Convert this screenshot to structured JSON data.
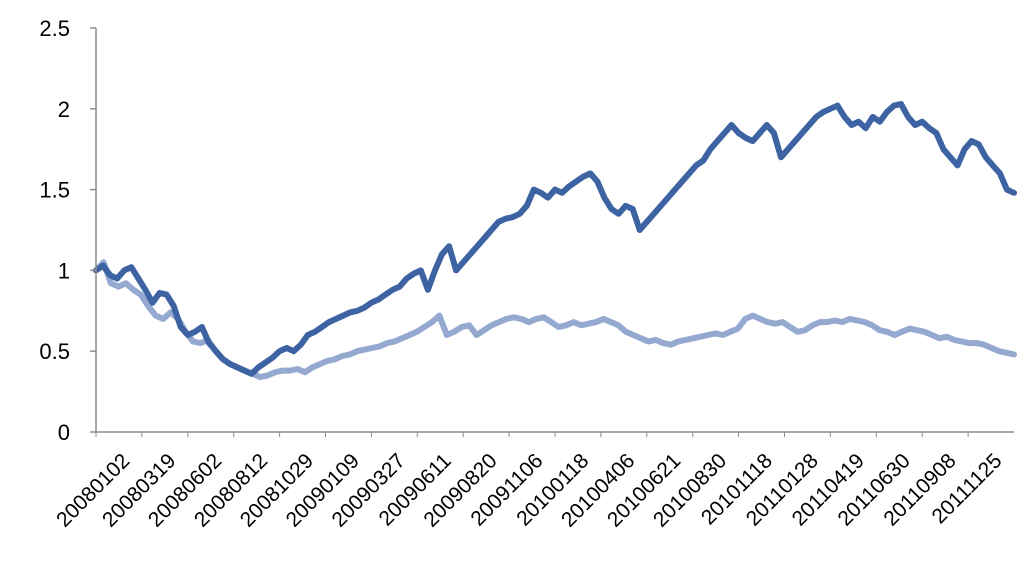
{
  "chart_data": {
    "type": "line",
    "title": "",
    "xlabel": "",
    "ylabel": "",
    "ylim": [
      0,
      2.5
    ],
    "yticks": [
      "0",
      "0.5",
      "1",
      "1.5",
      "2",
      "2.5"
    ],
    "xtick_labels": [
      "20080102",
      "20080319",
      "20080602",
      "20080812",
      "20081029",
      "20090109",
      "20090327",
      "20090611",
      "20090820",
      "20091106",
      "20100118",
      "20100406",
      "20100621",
      "20100830",
      "20101118",
      "20110128",
      "20110419",
      "20110630",
      "20110908",
      "20111125"
    ],
    "grid": false,
    "legend": "none",
    "colors": {
      "series_1": "#3d63a3",
      "series_2": "#94a8d0",
      "axis": "#8c8c8c"
    },
    "series": [
      {
        "values": [
          1.0,
          1.03,
          0.97,
          0.95,
          1.0,
          1.02,
          0.95,
          0.88,
          0.8,
          0.86,
          0.85,
          0.78,
          0.65,
          0.6,
          0.62,
          0.65,
          0.55,
          0.5,
          0.45,
          0.42,
          0.4,
          0.38,
          0.36,
          0.4,
          0.43,
          0.46,
          0.5,
          0.52,
          0.5,
          0.54,
          0.6,
          0.62,
          0.65,
          0.68,
          0.7,
          0.72,
          0.74,
          0.75,
          0.77,
          0.8,
          0.82,
          0.85,
          0.88,
          0.9,
          0.95,
          0.98,
          1.0,
          0.88,
          1.0,
          1.1,
          1.15,
          1.0,
          1.05,
          1.1,
          1.15,
          1.2,
          1.25,
          1.3,
          1.32,
          1.33,
          1.35,
          1.4,
          1.5,
          1.48,
          1.45,
          1.5,
          1.48,
          1.52,
          1.55,
          1.58,
          1.6,
          1.55,
          1.45,
          1.38,
          1.35,
          1.4,
          1.38,
          1.25,
          1.3,
          1.35,
          1.4,
          1.45,
          1.5,
          1.55,
          1.6,
          1.65,
          1.68,
          1.75,
          1.8,
          1.85,
          1.9,
          1.85,
          1.82,
          1.8,
          1.85,
          1.9,
          1.85,
          1.7,
          1.75,
          1.8,
          1.85,
          1.9,
          1.95,
          1.98,
          2.0,
          2.02,
          1.95,
          1.9,
          1.92,
          1.88,
          1.95,
          1.92,
          1.98,
          2.02,
          2.03,
          1.95,
          1.9,
          1.92,
          1.88,
          1.85,
          1.75,
          1.7,
          1.65,
          1.75,
          1.8,
          1.78,
          1.7,
          1.65,
          1.6,
          1.5,
          1.48
        ]
      },
      {
        "values": [
          1.0,
          1.05,
          0.92,
          0.9,
          0.92,
          0.88,
          0.85,
          0.78,
          0.72,
          0.7,
          0.74,
          0.7,
          0.62,
          0.56,
          0.55,
          0.57,
          0.5,
          0.45,
          0.42,
          0.4,
          0.38,
          0.36,
          0.34,
          0.35,
          0.37,
          0.38,
          0.38,
          0.39,
          0.37,
          0.4,
          0.42,
          0.44,
          0.45,
          0.47,
          0.48,
          0.5,
          0.51,
          0.52,
          0.53,
          0.55,
          0.56,
          0.58,
          0.6,
          0.62,
          0.65,
          0.68,
          0.72,
          0.6,
          0.62,
          0.65,
          0.66,
          0.6,
          0.63,
          0.66,
          0.68,
          0.7,
          0.71,
          0.7,
          0.68,
          0.7,
          0.71,
          0.68,
          0.65,
          0.66,
          0.68,
          0.66,
          0.67,
          0.68,
          0.7,
          0.68,
          0.66,
          0.62,
          0.6,
          0.58,
          0.56,
          0.57,
          0.55,
          0.54,
          0.56,
          0.57,
          0.58,
          0.59,
          0.6,
          0.61,
          0.6,
          0.62,
          0.64,
          0.7,
          0.72,
          0.7,
          0.68,
          0.67,
          0.68,
          0.65,
          0.62,
          0.63,
          0.66,
          0.68,
          0.68,
          0.69,
          0.68,
          0.7,
          0.69,
          0.68,
          0.66,
          0.63,
          0.62,
          0.6,
          0.62,
          0.64,
          0.63,
          0.62,
          0.6,
          0.58,
          0.59,
          0.57,
          0.56,
          0.55,
          0.55,
          0.54,
          0.52,
          0.5,
          0.49,
          0.48
        ]
      }
    ]
  }
}
